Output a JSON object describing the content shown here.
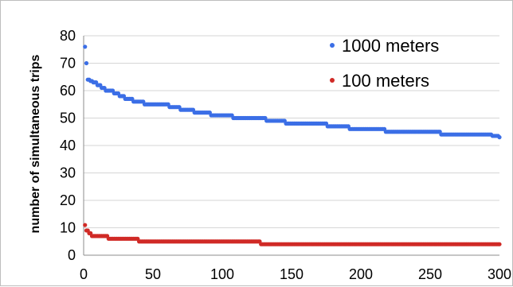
{
  "chart_data": {
    "type": "scatter",
    "title": "",
    "xlabel": "",
    "ylabel": "number of simultaneous trips",
    "xlim": [
      0,
      300
    ],
    "ylim": [
      0,
      80
    ],
    "x_ticks": [
      0,
      50,
      100,
      150,
      200,
      250,
      300
    ],
    "y_ticks": [
      0,
      10,
      20,
      30,
      40,
      50,
      60,
      70,
      80
    ],
    "grid": "horizontal",
    "legend_position": "top-right",
    "series": [
      {
        "name": "1000 meters",
        "color": "#3b6ee6",
        "breakpoints": [
          [
            1,
            76
          ],
          [
            2,
            70
          ],
          [
            3,
            64
          ],
          [
            5,
            63.5
          ],
          [
            7,
            63
          ],
          [
            10,
            62
          ],
          [
            13,
            61
          ],
          [
            16,
            60
          ],
          [
            22,
            59
          ],
          [
            26,
            58
          ],
          [
            30,
            57
          ],
          [
            36,
            56
          ],
          [
            44,
            55
          ],
          [
            62,
            54
          ],
          [
            70,
            53
          ],
          [
            80,
            52
          ],
          [
            92,
            51
          ],
          [
            108,
            50
          ],
          [
            132,
            49
          ],
          [
            146,
            48
          ],
          [
            176,
            47
          ],
          [
            192,
            46
          ],
          [
            218,
            45
          ],
          [
            258,
            44
          ],
          [
            295,
            43.5
          ],
          [
            300,
            43
          ]
        ]
      },
      {
        "name": "100 meters",
        "color": "#d02a26",
        "breakpoints": [
          [
            1,
            11
          ],
          [
            2,
            9
          ],
          [
            4,
            8
          ],
          [
            6,
            7
          ],
          [
            18,
            6
          ],
          [
            40,
            5
          ],
          [
            128,
            4
          ],
          [
            300,
            4
          ]
        ]
      }
    ]
  }
}
